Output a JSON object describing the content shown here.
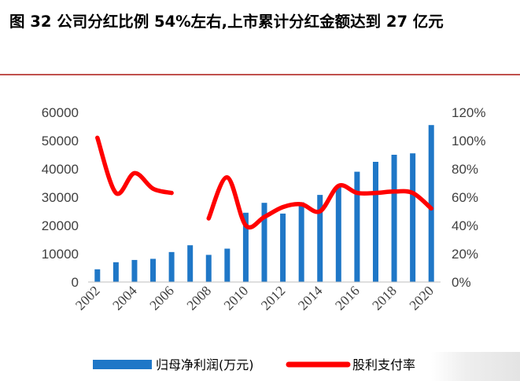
{
  "title": "图  32  公司分红比例 54%左右,上市累计分红金额达到 27 亿元",
  "chart_data": {
    "type": "bar+line",
    "categories": [
      "2002",
      "2003",
      "2004",
      "2005",
      "2006",
      "2007",
      "2008",
      "2009",
      "2010",
      "2011",
      "2012",
      "2013",
      "2014",
      "2015",
      "2016",
      "2017",
      "2018",
      "2019",
      "2020"
    ],
    "x_tick_labels": [
      "2002",
      "2004",
      "2006",
      "2008",
      "2010",
      "2012",
      "2014",
      "2016",
      "2018",
      "2020"
    ],
    "series": [
      {
        "name": "归母净利润(万元)",
        "type": "bar",
        "axis": "left",
        "color": "#1f77c7",
        "values": [
          4500,
          7000,
          7800,
          8200,
          10600,
          13000,
          9600,
          11800,
          24500,
          28000,
          24200,
          28200,
          30800,
          33500,
          39000,
          42500,
          45000,
          45500,
          55500
        ]
      },
      {
        "name": "股利支付率",
        "type": "line",
        "axis": "right",
        "color": "#ff0000",
        "values": [
          1.02,
          0.63,
          0.77,
          0.66,
          0.63,
          null,
          0.45,
          0.74,
          0.4,
          0.46,
          0.53,
          0.55,
          0.5,
          0.68,
          0.63,
          0.63,
          0.64,
          0.63,
          0.52
        ]
      }
    ],
    "y_left": {
      "lim": [
        0,
        60000
      ],
      "ticks": [
        "0",
        "10000",
        "20000",
        "30000",
        "40000",
        "50000",
        "60000"
      ]
    },
    "y_right": {
      "lim": [
        0,
        1.2
      ],
      "ticks": [
        "0%",
        "20%",
        "40%",
        "60%",
        "80%",
        "100%",
        "120%"
      ]
    },
    "legend": "bottom"
  }
}
